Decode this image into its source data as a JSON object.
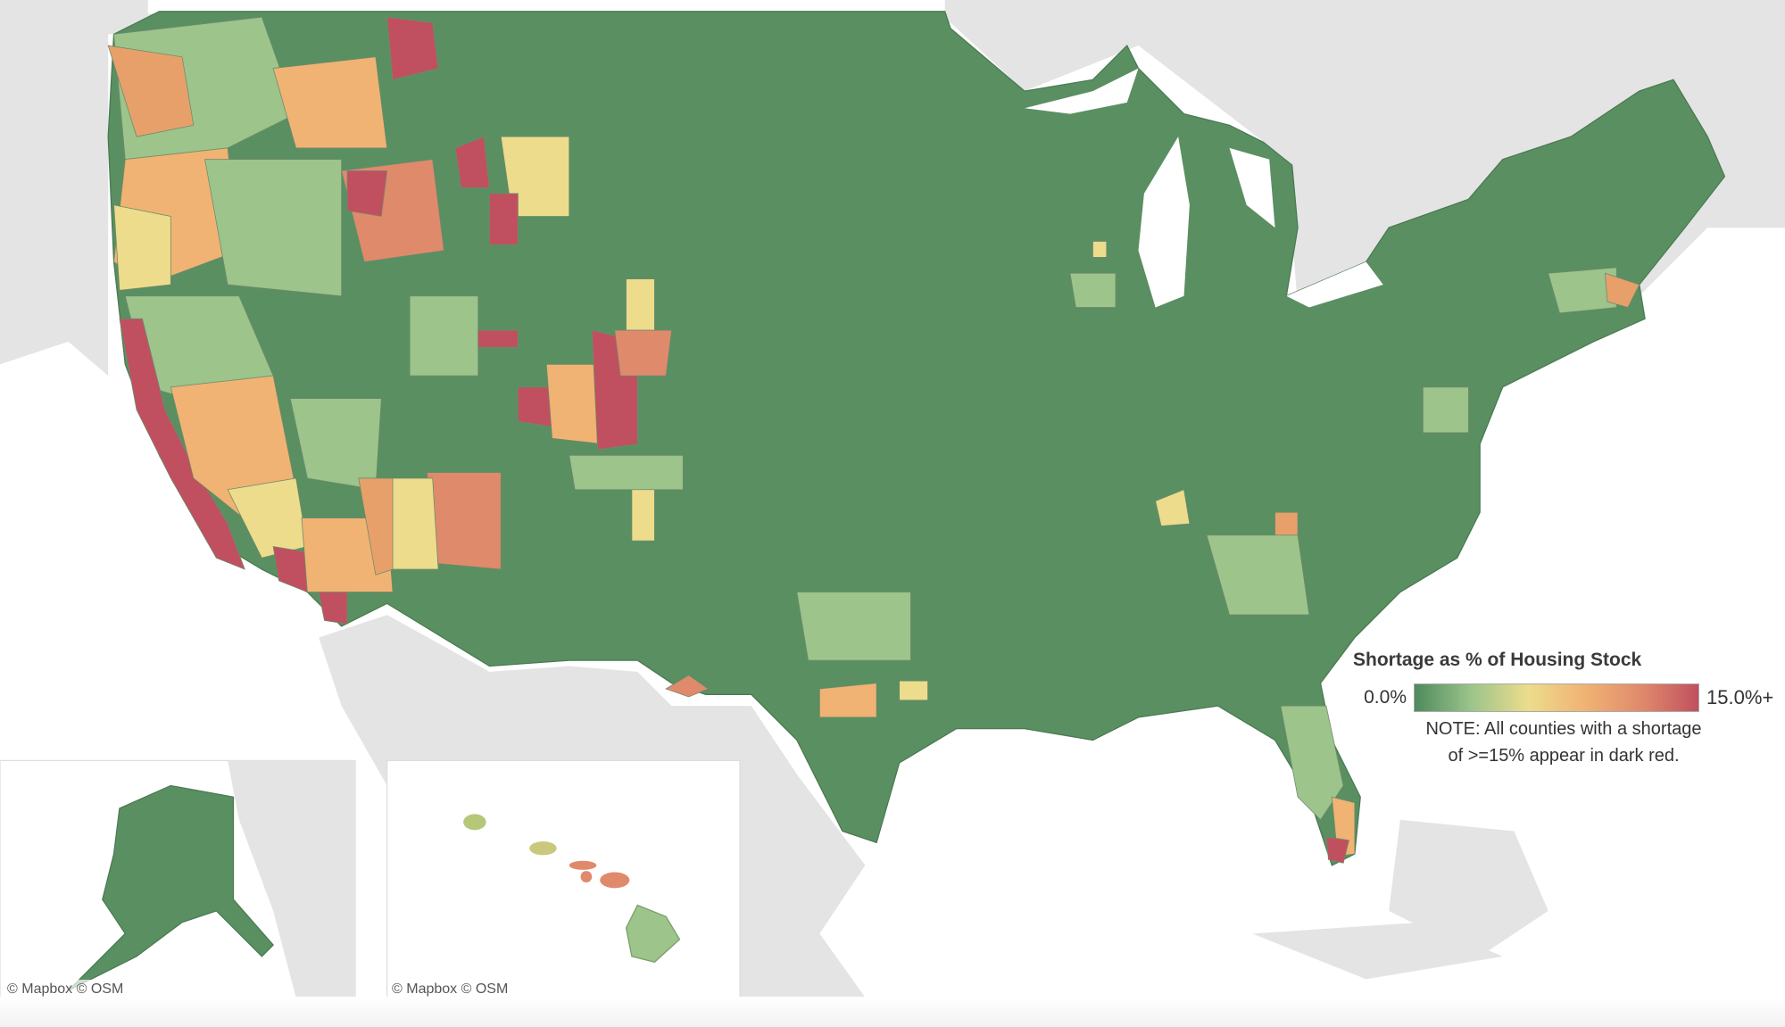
{
  "legend": {
    "title": "Shortage as % of Housing Stock",
    "min_label": "0.0%",
    "max_label": "15.0%+",
    "note_line1": "NOTE: All counties with a shortage",
    "note_line2": "of >=15% appear in dark red.",
    "gradient_colors": [
      "#4e8a5c",
      "#9cc48b",
      "#ecdc8c",
      "#f0b373",
      "#e08a6c",
      "#c0505f"
    ]
  },
  "insets": {
    "alaska_credit": "© Mapbox  © OSM",
    "hawaii_credit": "© Mapbox  © OSM"
  },
  "colors": {
    "base_green": "#5a8f62",
    "land_gray": "#e3e3e3",
    "water": "#ffffff"
  }
}
